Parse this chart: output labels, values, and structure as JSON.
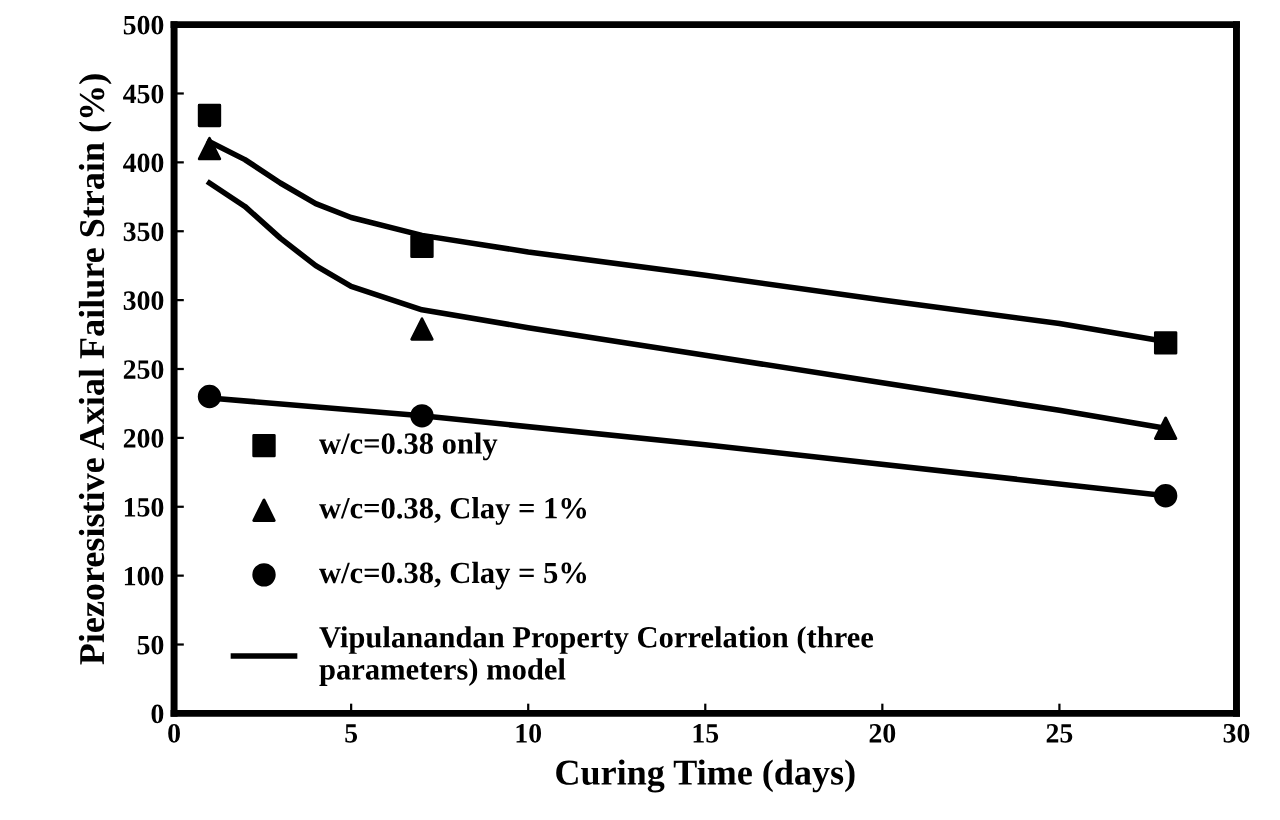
{
  "chart_data": {
    "type": "scatter",
    "xlabel": "Curing Time (days)",
    "ylabel": "Piezoresistive Axial Failure Strain (%)",
    "xlim": [
      0,
      30
    ],
    "xticks": [
      0,
      5,
      10,
      15,
      20,
      25,
      30
    ],
    "ylim": [
      0,
      500
    ],
    "yticks": [
      0,
      50,
      100,
      150,
      200,
      250,
      300,
      350,
      400,
      450,
      500
    ],
    "grid": false,
    "legend": "bottom left",
    "series": [
      {
        "name": "w/c=0.38 only",
        "marker": "square",
        "color": "#000000",
        "x": [
          1,
          7,
          28
        ],
        "values": [
          434,
          339,
          269
        ]
      },
      {
        "name": "w/c=0.38, Clay = 1%",
        "marker": "triangle",
        "color": "#000000",
        "x": [
          1,
          7,
          28
        ],
        "values": [
          410,
          279,
          207
        ]
      },
      {
        "name": "w/c=0.38, Clay = 5%",
        "marker": "circle",
        "color": "#000000",
        "x": [
          1,
          7,
          28
        ],
        "values": [
          230,
          216,
          158
        ]
      },
      {
        "name": "Vipulanandan Property Correlation (three parameters) model",
        "type": "line",
        "marker": "none",
        "line_style": "solid",
        "color": "#000000",
        "x": [
          1,
          2,
          3,
          4,
          5,
          7,
          10,
          15,
          20,
          25,
          28
        ],
        "values": [
          415,
          402,
          385,
          370,
          360,
          347,
          335,
          318,
          300,
          283,
          270
        ]
      },
      {
        "type": "line",
        "marker": "none",
        "line_style": "solid",
        "color": "#000000",
        "x": [
          1,
          2,
          3,
          4,
          5,
          7,
          10,
          15,
          20,
          25,
          28
        ],
        "values": [
          385,
          368,
          345,
          325,
          310,
          293,
          280,
          260,
          240,
          220,
          207
        ]
      },
      {
        "type": "line",
        "marker": "none",
        "line_style": "solid",
        "color": "#000000",
        "x": [
          1,
          7,
          15,
          28
        ],
        "values": [
          229,
          216,
          195,
          158
        ]
      }
    ]
  }
}
